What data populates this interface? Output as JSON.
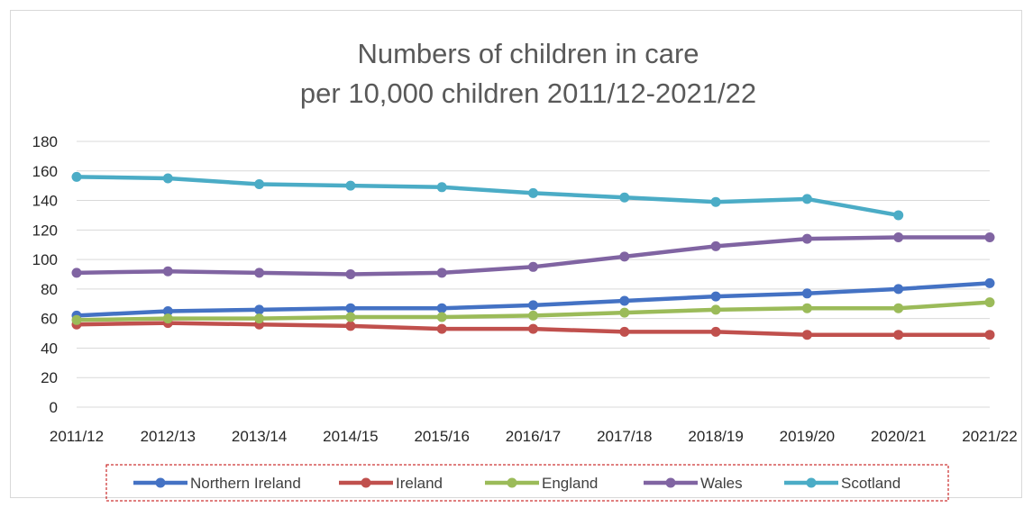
{
  "chart_data": {
    "type": "line",
    "title": [
      "Numbers of children in care",
      "per 10,000 children 2011/12-2021/22"
    ],
    "xlabel": "",
    "ylabel": "",
    "categories": [
      "2011/12",
      "2012/13",
      "2013/14",
      "2014/15",
      "2015/16",
      "2016/17",
      "2017/18",
      "2018/19",
      "2019/20",
      "2020/21",
      "2021/22"
    ],
    "ylim": [
      0,
      180
    ],
    "yticks": [
      0,
      20,
      40,
      60,
      80,
      100,
      120,
      140,
      160,
      180
    ],
    "grid": true,
    "legend_position": "bottom",
    "series": [
      {
        "name": "Northern Ireland",
        "color": "#4472c4",
        "values": [
          62,
          65,
          66,
          67,
          67,
          69,
          72,
          75,
          77,
          80,
          84
        ]
      },
      {
        "name": "Ireland",
        "color": "#c0504d",
        "values": [
          56,
          57,
          56,
          55,
          53,
          53,
          51,
          51,
          49,
          49,
          49
        ]
      },
      {
        "name": "England",
        "color": "#9bbb59",
        "values": [
          59,
          60,
          60,
          61,
          61,
          62,
          64,
          66,
          67,
          67,
          71
        ]
      },
      {
        "name": "Wales",
        "color": "#8064a2",
        "values": [
          91,
          92,
          91,
          90,
          91,
          95,
          102,
          109,
          114,
          115,
          115
        ]
      },
      {
        "name": "Scotland",
        "color": "#4bacc6",
        "values": [
          156,
          155,
          151,
          150,
          149,
          145,
          142,
          139,
          141,
          130,
          null
        ]
      }
    ]
  }
}
